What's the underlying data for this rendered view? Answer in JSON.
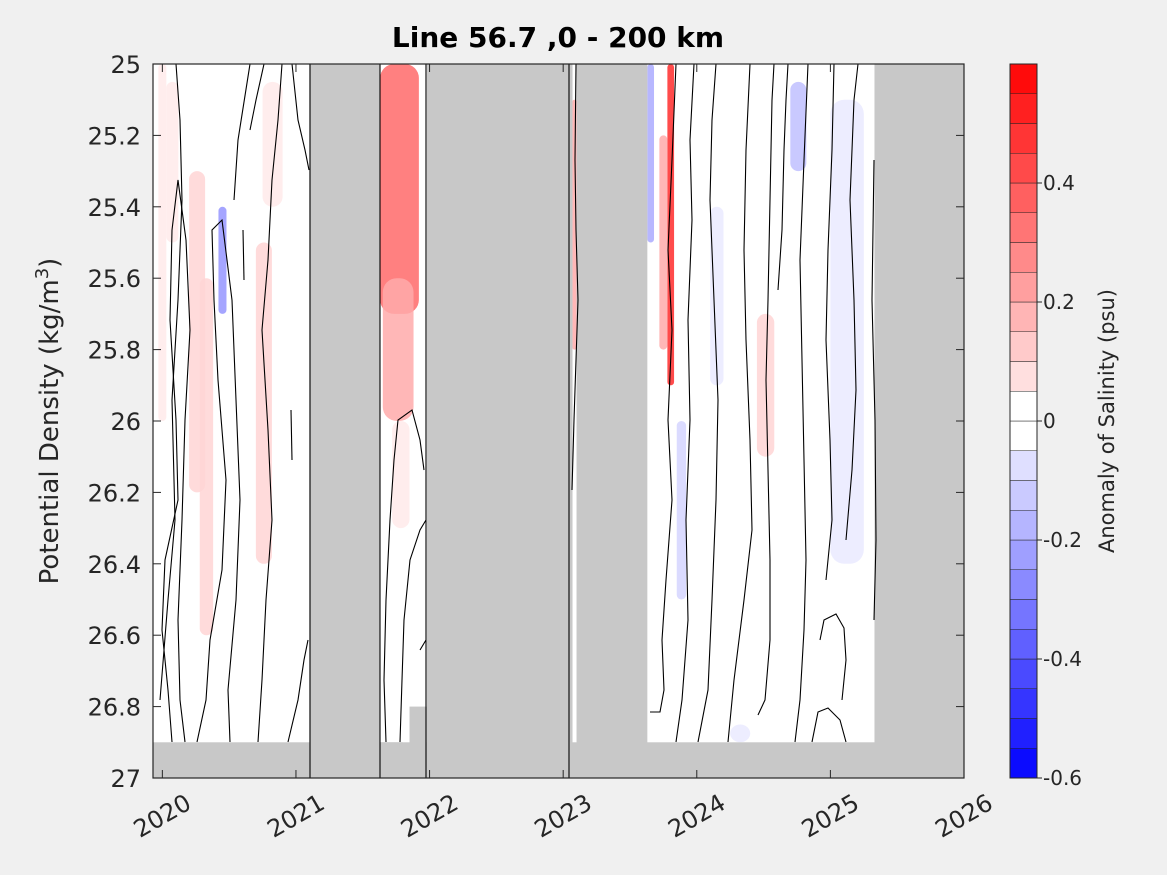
{
  "chart_data": {
    "type": "heatmap",
    "title": "Line 56.7 ,0 - 200 km",
    "ylabel_main": "Potential Density (kg/m",
    "ylabel_sup": "3",
    "ylabel_close": ")",
    "xlim": [
      2019.93,
      2026.0
    ],
    "ylim": [
      25.0,
      27.0
    ],
    "y_reversed": true,
    "x_ticks": [
      "2020",
      "2021",
      "2022",
      "2023",
      "2024",
      "2025",
      "2026"
    ],
    "x_tick_values": [
      2020.0,
      2021.0,
      2022.0,
      2023.0,
      2024.0,
      2025.0,
      2026.0
    ],
    "y_ticks": [
      "25",
      "25.2",
      "25.4",
      "25.6",
      "25.8",
      "26",
      "26.2",
      "26.4",
      "26.6",
      "26.8",
      "27"
    ],
    "y_tick_values": [
      25.0,
      25.2,
      25.4,
      25.6,
      25.8,
      26.0,
      26.2,
      26.4,
      26.6,
      26.8,
      27.0
    ],
    "colorbar": {
      "label": "Anomaly of Salinity (psu)",
      "range": [
        -0.6,
        0.6
      ],
      "ticks": [
        "0.4",
        "0.2",
        "0",
        "-0.2",
        "-0.4",
        "-0.6"
      ],
      "tick_values": [
        0.4,
        0.2,
        0.0,
        -0.2,
        -0.4,
        -0.6
      ],
      "levels": 24,
      "colors": {
        "positive": "#ff0000",
        "negative": "#0000ff",
        "zero": "#ffffff"
      }
    },
    "no_data_color": "#c8c8c8",
    "grid": false,
    "no_data_gaps": [
      {
        "x": [
          2021.1,
          2021.63
        ],
        "y": [
          25.0,
          27.0
        ]
      },
      {
        "x": [
          2021.98,
          2023.07
        ],
        "y": [
          25.0,
          27.0
        ]
      },
      {
        "x": [
          2023.1,
          2023.63
        ],
        "y": [
          25.0,
          27.0
        ]
      },
      {
        "x": [
          2025.33,
          2026.0
        ],
        "y": [
          25.0,
          27.0
        ]
      },
      {
        "x": [
          2019.93,
          2026.0
        ],
        "y": [
          26.9,
          27.0
        ]
      },
      {
        "x": [
          2021.63,
          2021.8
        ],
        "y": [
          26.9,
          27.0
        ]
      },
      {
        "x": [
          2021.85,
          2021.98
        ],
        "y": [
          26.8,
          27.0
        ]
      }
    ],
    "anomaly_patches": [
      {
        "x": [
          2019.97,
          2020.03
        ],
        "y": [
          25.0,
          26.0
        ],
        "value": 0.05
      },
      {
        "x": [
          2020.03,
          2020.12
        ],
        "y": [
          25.05,
          25.5
        ],
        "value": 0.05
      },
      {
        "x": [
          2020.2,
          2020.32
        ],
        "y": [
          25.3,
          26.2
        ],
        "value": 0.1
      },
      {
        "x": [
          2020.28,
          2020.38
        ],
        "y": [
          25.6,
          26.6
        ],
        "value": 0.1
      },
      {
        "x": [
          2020.42,
          2020.48
        ],
        "y": [
          25.4,
          25.7
        ],
        "value": -0.25
      },
      {
        "x": [
          2020.7,
          2020.82
        ],
        "y": [
          25.5,
          26.4
        ],
        "value": 0.1
      },
      {
        "x": [
          2020.75,
          2020.9
        ],
        "y": [
          25.05,
          25.4
        ],
        "value": 0.05
      },
      {
        "x": [
          2021.63,
          2021.92
        ],
        "y": [
          25.0,
          25.7
        ],
        "value": 0.35
      },
      {
        "x": [
          2021.65,
          2021.88
        ],
        "y": [
          25.6,
          26.0
        ],
        "value": 0.2
      },
      {
        "x": [
          2021.72,
          2021.85
        ],
        "y": [
          26.0,
          26.3
        ],
        "value": 0.05
      },
      {
        "x": [
          2023.07,
          2023.1
        ],
        "y": [
          25.1,
          25.8
        ],
        "value": 0.2
      },
      {
        "x": [
          2023.63,
          2023.68
        ],
        "y": [
          25.0,
          25.5
        ],
        "value": -0.2
      },
      {
        "x": [
          2023.78,
          2023.83
        ],
        "y": [
          25.0,
          25.9
        ],
        "value": 0.5
      },
      {
        "x": [
          2023.72,
          2023.78
        ],
        "y": [
          25.2,
          25.8
        ],
        "value": 0.2
      },
      {
        "x": [
          2023.85,
          2023.92
        ],
        "y": [
          26.0,
          26.5
        ],
        "value": -0.1
      },
      {
        "x": [
          2024.1,
          2024.2
        ],
        "y": [
          25.4,
          25.9
        ],
        "value": -0.05
      },
      {
        "x": [
          2024.45,
          2024.58
        ],
        "y": [
          25.7,
          26.1
        ],
        "value": 0.1
      },
      {
        "x": [
          2024.7,
          2024.82
        ],
        "y": [
          25.05,
          25.3
        ],
        "value": -0.15
      },
      {
        "x": [
          2025.0,
          2025.25
        ],
        "y": [
          25.1,
          26.4
        ],
        "value": -0.05
      },
      {
        "x": [
          2024.25,
          2024.4
        ],
        "y": [
          26.85,
          26.9
        ],
        "value": -0.05
      }
    ]
  }
}
